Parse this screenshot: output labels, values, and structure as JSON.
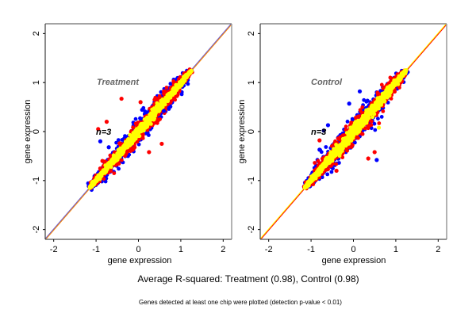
{
  "chart_data": [
    {
      "type": "scatter",
      "title": "Treatment",
      "annotation": "n=3",
      "xlabel": "gene expression",
      "ylabel": "gene expression",
      "xlim": [
        -2.2,
        2.2
      ],
      "ylim": [
        -2.2,
        2.2
      ],
      "xticks": [
        -2,
        -1,
        0,
        1,
        2
      ],
      "yticks": [
        -2,
        -1,
        0,
        1,
        2
      ],
      "reference_line": {
        "slope": 1,
        "intercept": 0,
        "colors": [
          "#ff8c00",
          "#6a5acd"
        ]
      },
      "grid": false,
      "cloud": {
        "x_range": [
          -1.15,
          1.25
        ],
        "center_slope": 1.0
      },
      "series": [
        {
          "name": "outer",
          "color": "#0000ff",
          "spread": 0.28
        },
        {
          "name": "middle",
          "color": "#ff0000",
          "spread": 0.24
        },
        {
          "name": "inner",
          "color": "#ffff00",
          "spread": 0.1
        }
      ],
      "outliers": [
        {
          "x": -0.4,
          "y": 0.67,
          "color": "#ff0000"
        },
        {
          "x": -0.9,
          "y": -0.2,
          "color": "#0000ff"
        },
        {
          "x": -0.95,
          "y": 0.05,
          "color": "#ff0000"
        },
        {
          "x": -0.75,
          "y": 0.2,
          "color": "#ff0000"
        },
        {
          "x": 0.25,
          "y": -0.42,
          "color": "#ff0000"
        },
        {
          "x": 0.55,
          "y": -0.25,
          "color": "#ff0000"
        },
        {
          "x": 0.05,
          "y": 0.6,
          "color": "#ff0000"
        },
        {
          "x": -0.7,
          "y": -0.32,
          "color": "#0000ff"
        },
        {
          "x": 0.6,
          "y": 0.42,
          "color": "#0000ff"
        },
        {
          "x": -0.85,
          "y": -0.6,
          "color": "#ff0000"
        }
      ]
    },
    {
      "type": "scatter",
      "title": "Control",
      "annotation": "n=3",
      "xlabel": "gene expression",
      "ylabel": "gene expression",
      "xlim": [
        -2.2,
        2.2
      ],
      "ylim": [
        -2.2,
        2.2
      ],
      "xticks": [
        -2,
        -1,
        0,
        1,
        2
      ],
      "yticks": [
        -2,
        -1,
        0,
        1,
        2
      ],
      "reference_line": {
        "slope": 1,
        "intercept": 0,
        "colors": [
          "#ff0000",
          "#ffff00"
        ]
      },
      "grid": false,
      "cloud": {
        "x_range": [
          -1.15,
          1.25
        ],
        "center_slope": 1.0
      },
      "series": [
        {
          "name": "outer",
          "color": "#0000ff",
          "spread": 0.3
        },
        {
          "name": "middle",
          "color": "#ff0000",
          "spread": 0.26
        },
        {
          "name": "inner",
          "color": "#ffff00",
          "spread": 0.12
        }
      ],
      "outliers": [
        {
          "x": 0.15,
          "y": 0.82,
          "color": "#0000ff"
        },
        {
          "x": -0.1,
          "y": 0.57,
          "color": "#0000ff"
        },
        {
          "x": -0.6,
          "y": 0.13,
          "color": "#0000ff"
        },
        {
          "x": -0.7,
          "y": 0.02,
          "color": "#000080"
        },
        {
          "x": -0.8,
          "y": -0.18,
          "color": "#ff0000"
        },
        {
          "x": 0.55,
          "y": -0.58,
          "color": "#0000ff"
        },
        {
          "x": 0.35,
          "y": -0.55,
          "color": "#ff0000"
        },
        {
          "x": -0.4,
          "y": -0.8,
          "color": "#ff0000"
        },
        {
          "x": 0.5,
          "y": -0.42,
          "color": "#ff0000"
        },
        {
          "x": -0.8,
          "y": -0.37,
          "color": "#0000ff"
        },
        {
          "x": 0.6,
          "y": 0.08,
          "color": "#ffff00"
        }
      ]
    }
  ],
  "figure": {
    "main_title": "Average R-squared: Treatment (0.98), Control (0.98)",
    "footnote": "Genes detected at least one chip were plotted (detection p-value < 0.01)"
  },
  "panels": [
    {
      "title": "Treatment",
      "annotation": "n=3",
      "xlabel": "gene expression",
      "ylabel": "gene expression"
    },
    {
      "title": "Control",
      "annotation": "n=3",
      "xlabel": "gene expression",
      "ylabel": "gene expression"
    }
  ]
}
